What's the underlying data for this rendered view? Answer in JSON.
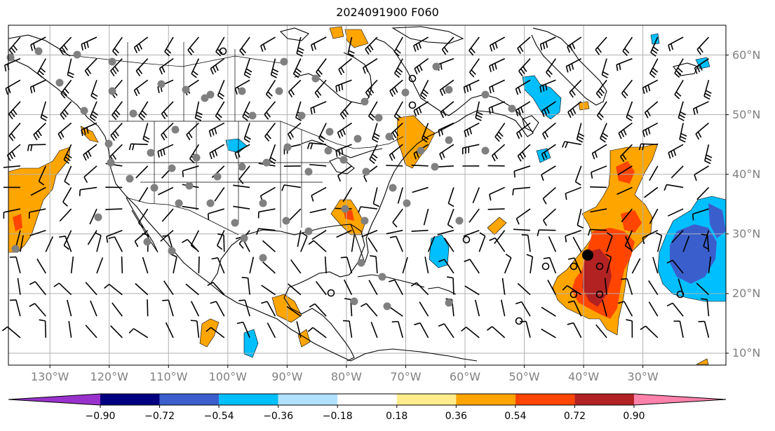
{
  "title": "2024091900 F060",
  "map": {
    "extent_lon": [
      -137,
      -16
    ],
    "extent_lat": [
      8,
      65
    ],
    "lon_ticks": [
      {
        "value": -130,
        "label": "130°W"
      },
      {
        "value": -120,
        "label": "120°W"
      },
      {
        "value": -110,
        "label": "110°W"
      },
      {
        "value": -100,
        "label": "100°W"
      },
      {
        "value": -90,
        "label": "90°W"
      },
      {
        "value": -80,
        "label": "80°W"
      },
      {
        "value": -70,
        "label": "70°W"
      },
      {
        "value": -60,
        "label": "60°W"
      },
      {
        "value": -50,
        "label": "50°W"
      },
      {
        "value": -40,
        "label": "40°W"
      },
      {
        "value": -30,
        "label": "30°W"
      }
    ],
    "lat_ticks": [
      {
        "value": 10,
        "label": "10°N"
      },
      {
        "value": 20,
        "label": "20°N"
      },
      {
        "value": 30,
        "label": "30°N"
      },
      {
        "value": 40,
        "label": "40°N"
      },
      {
        "value": 50,
        "label": "50°N"
      },
      {
        "value": 60,
        "label": "60°N"
      }
    ],
    "gridlines": true,
    "label_color": "#808080"
  },
  "colorbar": {
    "ticks": [
      "−0.90",
      "−0.72",
      "−0.54",
      "−0.36",
      "−0.18",
      "0.18",
      "0.36",
      "0.54",
      "0.72",
      "0.90"
    ],
    "under_color": "#9932cc",
    "colors": [
      "#9932cc",
      "#000080",
      "#3a5fcd",
      "#00bfff",
      "#b0e2ff",
      "#ffffff",
      "#ffec8b",
      "#ffa500",
      "#ff4500",
      "#b22222",
      "#ff82ab"
    ],
    "over_color": "#ff82ab"
  },
  "anomaly_colors": {
    "orange": "#ffa500",
    "red": "#ff4500",
    "darkred": "#b22222",
    "lightblue": "#b0e2ff",
    "skyblue": "#00bfff",
    "royalblue": "#3a5fcd"
  },
  "markers": {
    "station_color": "#808080",
    "center_color": "#000000"
  }
}
